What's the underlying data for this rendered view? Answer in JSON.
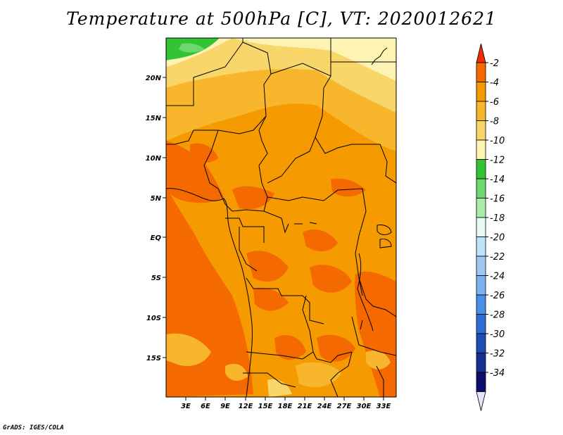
{
  "title": "Temperature at 500hPa [C], VT: 2020012621",
  "footer": "GrADS: IGES/COLA",
  "map": {
    "lon_ticks": [
      "3E",
      "6E",
      "9E",
      "12E",
      "15E",
      "18E",
      "21E",
      "24E",
      "27E",
      "30E",
      "33E"
    ],
    "lat_ticks": [
      "20N",
      "15N",
      "10N",
      "5N",
      "EQ",
      "5S",
      "10S",
      "15S"
    ]
  },
  "colorbar": {
    "labels": [
      "-2",
      "-4",
      "-6",
      "-8",
      "-10",
      "-12",
      "-14",
      "-16",
      "-18",
      "-20",
      "-22",
      "-24",
      "-26",
      "-28",
      "-30",
      "-32",
      "-34"
    ],
    "colors": [
      "#ee2d00",
      "#f56a00",
      "#f59a00",
      "#f7b62c",
      "#f9d66a",
      "#fdf4b4",
      "#33c433",
      "#6bd96b",
      "#a8eda8",
      "#e6f9f3",
      "#bfe3fb",
      "#9fc9f4",
      "#7db1ef",
      "#4a90e6",
      "#2e6fd7",
      "#1c4eb6",
      "#15318c",
      "#0d0d6e",
      "#e4e4fa"
    ]
  }
}
